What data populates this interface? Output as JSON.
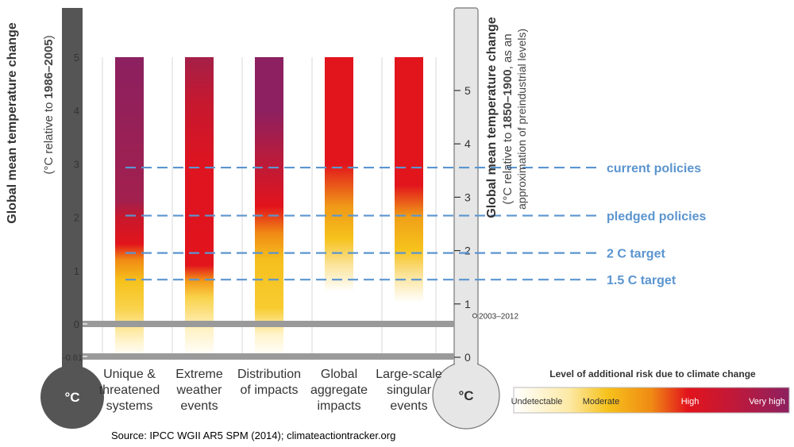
{
  "chart_data": {
    "type": "bar",
    "title": "",
    "left_axis": {
      "label_line1": "Global mean temperature change",
      "label_line2_prefix": "(°C relative to ",
      "label_line2_bold": "1986–2005",
      "label_line2_suffix": ")",
      "ticks": [
        "5",
        "4",
        "3",
        "2",
        "1",
        "0",
        "-0.61"
      ],
      "tick_values": [
        5,
        4,
        3,
        2,
        1,
        0,
        -0.61
      ],
      "unit": "°C",
      "range": [
        -0.61,
        5.8
      ]
    },
    "right_axis": {
      "label_line1": "Global mean temperature change",
      "label_line2_prefix": "(°C relative to ",
      "label_line2_bold": "1850–1900",
      "label_line2_suffix": ", as an",
      "label_line3": "approximation of preindustrial levels)",
      "ticks": [
        "5",
        "4",
        "3",
        "2",
        "1",
        "0"
      ],
      "tick_values": [
        5,
        4,
        3,
        2,
        1,
        0
      ],
      "marker_label": "2003–2012",
      "marker_value": 0.78,
      "unit": "°C"
    },
    "categories": [
      [
        "Unique &",
        "threatened",
        "systems"
      ],
      [
        "Extreme",
        "weather",
        "events"
      ],
      [
        "Distribution",
        "of impacts"
      ],
      [
        "Global",
        "aggregate",
        "impacts"
      ],
      [
        "Large-scale",
        "singular",
        "events"
      ]
    ],
    "bar_range": [
      -0.61,
      5
    ],
    "risk_levels": [
      {
        "name": "Undetectable",
        "color": "#ffffff"
      },
      {
        "name": "Moderate",
        "color": "#f7c51a"
      },
      {
        "name": "High",
        "color": "#e2141c"
      },
      {
        "name": "Very high",
        "color": "#8c2060"
      }
    ],
    "risk_gradients": [
      [
        [
          -0.61,
          "#ffffff"
        ],
        [
          -0.3,
          "#fff3c8"
        ],
        [
          0.3,
          "#f9d24a"
        ],
        [
          0.8,
          "#f6c21c"
        ],
        [
          1.2,
          "#f08a14"
        ],
        [
          1.5,
          "#e2141c"
        ],
        [
          2.0,
          "#c8182c"
        ],
        [
          2.3,
          "#a2204e"
        ],
        [
          5,
          "#8c2060"
        ]
      ],
      [
        [
          -0.61,
          "#ffffff"
        ],
        [
          -0.1,
          "#fff2c4"
        ],
        [
          0.5,
          "#f9d24a"
        ],
        [
          0.8,
          "#f39a18"
        ],
        [
          1.1,
          "#e2141c"
        ],
        [
          3.0,
          "#de1420"
        ],
        [
          4.2,
          "#c41830"
        ],
        [
          5,
          "#a42048"
        ]
      ],
      [
        [
          -0.61,
          "#ffffff"
        ],
        [
          -0.2,
          "#fff4cc"
        ],
        [
          0.3,
          "#f8cc30"
        ],
        [
          1.2,
          "#f5c01e"
        ],
        [
          1.7,
          "#f08a14"
        ],
        [
          2.2,
          "#e2141c"
        ],
        [
          3.2,
          "#b41c40"
        ],
        [
          4.0,
          "#8c2060"
        ],
        [
          5,
          "#8c2060"
        ]
      ],
      [
        [
          -0.61,
          "#ffffff"
        ],
        [
          0.6,
          "#ffffff"
        ],
        [
          1.1,
          "#fbe49c"
        ],
        [
          1.6,
          "#f6c21c"
        ],
        [
          2.2,
          "#f09a18"
        ],
        [
          3.0,
          "#e2141c"
        ],
        [
          5,
          "#e2141c"
        ]
      ],
      [
        [
          -0.61,
          "#ffffff"
        ],
        [
          0.4,
          "#ffffff"
        ],
        [
          0.9,
          "#fbe49c"
        ],
        [
          1.4,
          "#f6c21c"
        ],
        [
          2.0,
          "#f0a018"
        ],
        [
          2.6,
          "#e2141c"
        ],
        [
          5,
          "#e2141c"
        ]
      ]
    ],
    "reference_lines": [
      {
        "label": "current policies",
        "value": 3.6
      },
      {
        "label": "pledged policies",
        "value": 2.7
      },
      {
        "label": "2 C target",
        "value": 2.0
      },
      {
        "label": "1.5 C target",
        "value": 1.5
      }
    ],
    "legend": {
      "title": "Level of additional risk due to climate change",
      "labels": [
        "Undetectable",
        "Moderate",
        "High",
        "Very high"
      ]
    },
    "source": "Source: IPCC WGII AR5 SPM (2014);  climateactiontracker.org"
  }
}
